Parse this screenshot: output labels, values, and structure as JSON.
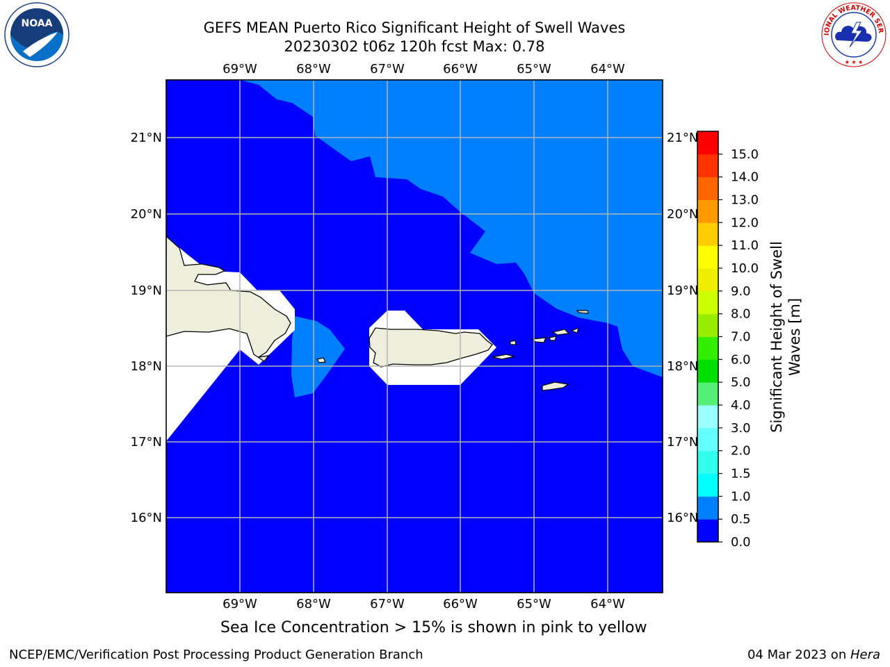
{
  "header": {
    "title_line1": "GEFS MEAN Puerto Rico Significant Height of Swell Waves",
    "title_line2": "20230302 t06z 120h fcst   Max: 0.78"
  },
  "logos": {
    "left": {
      "name": "noaa-logo",
      "text": "NOAA",
      "ring_text": "NATIONAL OCEANIC AND ATMOSPHERIC ADMINISTRATION · U.S. DEPARTMENT OF COMMERCE"
    },
    "right": {
      "name": "nws-logo",
      "ring_text": "NATIONAL WEATHER SERVICE"
    }
  },
  "map": {
    "lon_labels": [
      "69°W",
      "68°W",
      "67°W",
      "66°W",
      "65°W",
      "64°W"
    ],
    "lat_labels": [
      "21°N",
      "20°N",
      "19°N",
      "18°N",
      "17°N",
      "16°N"
    ],
    "colors": {
      "land": "#eeeedc",
      "grid": "#b4b4b4"
    }
  },
  "colorbar": {
    "label_line1": "Significant Height of Swell",
    "label_line2": "Waves [m]",
    "levels": [
      "0.0",
      "0.5",
      "1.0",
      "1.5",
      "2.0",
      "3.0",
      "4.0",
      "5.0",
      "6.0",
      "7.0",
      "8.0",
      "9.0",
      "10.0",
      "11.0",
      "12.0",
      "13.0",
      "14.0",
      "15.0"
    ],
    "colors": [
      "#0000ff",
      "#0080ff",
      "#00ffff",
      "#33ffee",
      "#66ffff",
      "#99ffff",
      "#55ee77",
      "#00dd00",
      "#33ee00",
      "#99ee00",
      "#ccff00",
      "#eeee00",
      "#ffff00",
      "#ffcc00",
      "#ff9900",
      "#ff6600",
      "#ff3300",
      "#ff0000"
    ]
  },
  "note": "Sea Ice Concentration > 15% is shown in pink to yellow",
  "footer": {
    "left": "NCEP/EMC/Verification Post Processing Product Generation Branch",
    "date": "04 Mar 2023 on ",
    "machine": "Hera"
  }
}
